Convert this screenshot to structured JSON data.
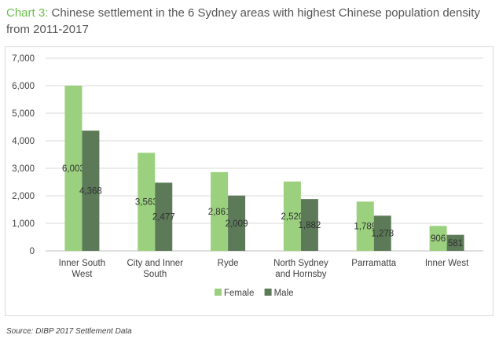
{
  "header": {
    "title_prefix": "Chart 3:",
    "title_text": "Chinese settlement in the 6 Sydney areas with highest Chinese population density from 2011-2017"
  },
  "footer": {
    "source": "Source: DIBP 2017 Settlement Data"
  },
  "colors": {
    "female": "#9bd17e",
    "male": "#5c7a58",
    "title_accent": "#6cbf4b",
    "grid": "#d9d9d9"
  },
  "chart_data": {
    "type": "bar",
    "title": "Chinese settlement in the 6 Sydney areas with highest Chinese population density from 2011-2017",
    "categories": [
      [
        "Inner South",
        "West"
      ],
      [
        "City and Inner",
        "South"
      ],
      [
        "Ryde"
      ],
      [
        "North Sydney",
        "and Hornsby"
      ],
      [
        "Parramatta"
      ],
      [
        "Inner West"
      ]
    ],
    "series": [
      {
        "name": "Female",
        "values": [
          6003,
          3563,
          2861,
          2520,
          1789,
          906
        ]
      },
      {
        "name": "Male",
        "values": [
          4368,
          2477,
          2009,
          1882,
          1278,
          581
        ]
      }
    ],
    "data_labels": {
      "Female": [
        "6,003",
        "3,563",
        "2,861",
        "2,520",
        "1,789",
        "906"
      ],
      "Male": [
        "4,368",
        "2,477",
        "2,009",
        "1,882",
        "1,278",
        "581"
      ]
    },
    "ylim": [
      0,
      7000
    ],
    "yticks": [
      0,
      1000,
      2000,
      3000,
      4000,
      5000,
      6000,
      7000
    ],
    "ytick_labels": [
      "0",
      "1,000",
      "2,000",
      "3,000",
      "4,000",
      "5,000",
      "6,000",
      "7,000"
    ],
    "grid": true,
    "legend_position": "bottom"
  }
}
